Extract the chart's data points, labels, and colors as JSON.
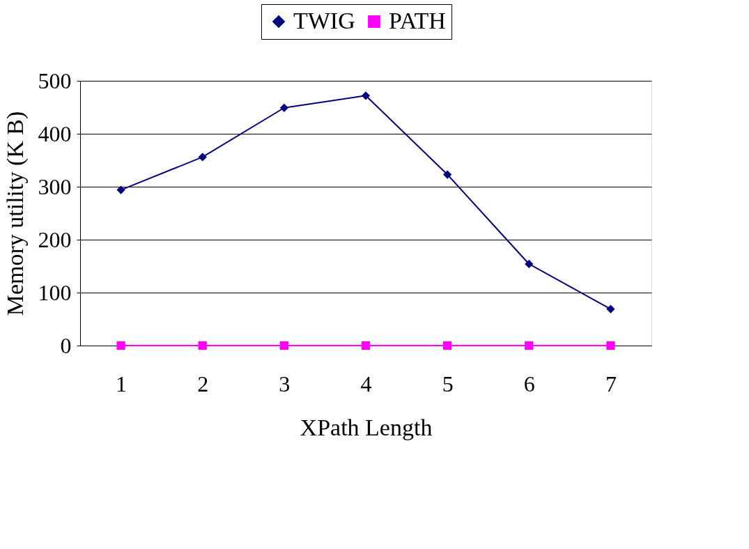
{
  "chart_data": {
    "type": "line",
    "xlabel": "XPath Length",
    "ylabel": "Memory utility (K B)",
    "categories": [
      "1",
      "2",
      "3",
      "4",
      "5",
      "6",
      "7"
    ],
    "series": [
      {
        "name": "TWIG",
        "color": "#000080",
        "marker": "diamond",
        "values": [
          294,
          356,
          449,
          472,
          323,
          154,
          69
        ]
      },
      {
        "name": "PATH",
        "color": "#ff00ff",
        "marker": "square",
        "values": [
          0,
          0,
          0,
          0,
          0,
          0,
          0
        ]
      }
    ],
    "ylim": [
      0,
      500
    ],
    "yticks": [
      0,
      100,
      200,
      300,
      400,
      500
    ],
    "grid": "y",
    "legend": "top",
    "line_style": "solid"
  }
}
